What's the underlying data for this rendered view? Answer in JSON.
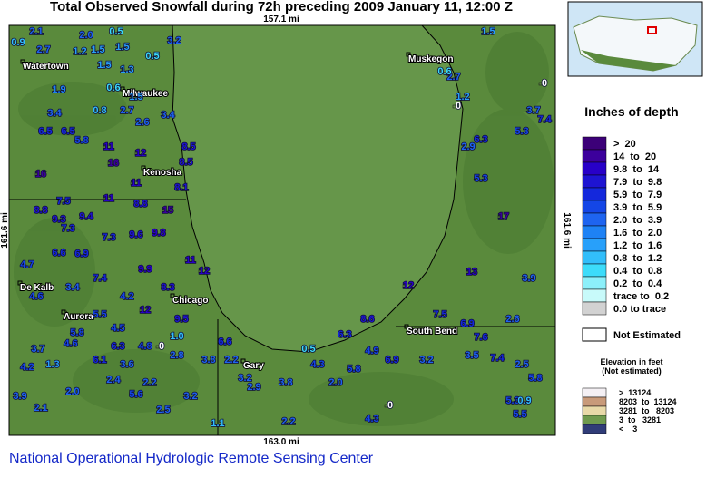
{
  "title": "Total Observed Snowfall during 72h preceding 2009 January 11, 12:00 Z",
  "scale": {
    "top": "157.1 mi",
    "bottom": "163.0 mi",
    "left": "161.6 mi",
    "right": "161.6 mi"
  },
  "cities": [
    "Watertown",
    "Milwaukee",
    "Kenosha",
    "Muskegon",
    "De Kalb",
    "Aurora",
    "Chicago",
    "Gary",
    "South Bend"
  ],
  "stations": [
    {
      "value": "2.1",
      "color": "#1e64f0"
    },
    {
      "value": "2.0",
      "color": "#1e64f0"
    },
    {
      "value": "0.5",
      "color": "#3cdcfa"
    },
    {
      "value": "1.5",
      "color": "#28a0fa"
    },
    {
      "value": "1.2",
      "color": "#28a0fa"
    },
    {
      "value": "1.5",
      "color": "#28a0fa"
    },
    {
      "value": "0.9",
      "color": "#32befa"
    },
    {
      "value": "2.7",
      "color": "#1e64f0"
    },
    {
      "value": "1.5",
      "color": "#28a0fa"
    },
    {
      "value": "1.3",
      "color": "#28a0fa"
    },
    {
      "value": "0.5",
      "color": "#3cdcfa"
    },
    {
      "value": "3.2",
      "color": "#1e64f0"
    },
    {
      "value": "1.9",
      "color": "#1e82f5"
    },
    {
      "value": "0.6",
      "color": "#3cdcfa"
    },
    {
      "value": "1.5",
      "color": "#28a0fa"
    },
    {
      "value": "2.7",
      "color": "#1e64f0"
    },
    {
      "value": "3.4",
      "color": "#1e64f0"
    },
    {
      "value": "0.8",
      "color": "#32befa"
    },
    {
      "value": "2.6",
      "color": "#1e64f0"
    },
    {
      "value": "3.4",
      "color": "#1e64f0"
    },
    {
      "value": "6.5",
      "color": "#1428dc"
    },
    {
      "value": "6.5",
      "color": "#1428dc"
    },
    {
      "value": "5.8",
      "color": "#1446e6"
    },
    {
      "value": "11",
      "color": "#2800c8"
    },
    {
      "value": "12",
      "color": "#2800c8"
    },
    {
      "value": "16",
      "color": "#3c009c"
    },
    {
      "value": "16",
      "color": "#3c009c"
    },
    {
      "value": "8.5",
      "color": "#1e14d2"
    },
    {
      "value": "8.5",
      "color": "#1e14d2"
    },
    {
      "value": "8.1",
      "color": "#1e14d2"
    },
    {
      "value": "11",
      "color": "#2800c8"
    },
    {
      "value": "7.5",
      "color": "#1428dc"
    },
    {
      "value": "11",
      "color": "#2800c8"
    },
    {
      "value": "8.8",
      "color": "#1e14d2"
    },
    {
      "value": "15",
      "color": "#3c009c"
    },
    {
      "value": "8.8",
      "color": "#1e14d2"
    },
    {
      "value": "9.3",
      "color": "#1e14d2"
    },
    {
      "value": "9.4",
      "color": "#1e14d2"
    },
    {
      "value": "7.3",
      "color": "#1428dc"
    },
    {
      "value": "7.3",
      "color": "#1428dc"
    },
    {
      "value": "9.6",
      "color": "#1e14d2"
    },
    {
      "value": "9.8",
      "color": "#2800c8"
    },
    {
      "value": "4.7",
      "color": "#1446e6"
    },
    {
      "value": "6.6",
      "color": "#1428dc"
    },
    {
      "value": "6.9",
      "color": "#1428dc"
    },
    {
      "value": "9.9",
      "color": "#2800c8"
    },
    {
      "value": "11",
      "color": "#2800c8"
    },
    {
      "value": "12",
      "color": "#2800c8"
    },
    {
      "value": "4.6",
      "color": "#1446e6"
    },
    {
      "value": "3.4",
      "color": "#1e64f0"
    },
    {
      "value": "7.4",
      "color": "#1428dc"
    },
    {
      "value": "4.2",
      "color": "#1446e6"
    },
    {
      "value": "8.3",
      "color": "#1e14d2"
    },
    {
      "value": "5.5",
      "color": "#1446e6"
    },
    {
      "value": "12",
      "color": "#2800c8"
    },
    {
      "value": "9.5",
      "color": "#1e14d2"
    },
    {
      "value": "5.8",
      "color": "#1446e6"
    },
    {
      "value": "4.5",
      "color": "#1446e6"
    },
    {
      "value": "3.7",
      "color": "#1e64f0"
    },
    {
      "value": "4.6",
      "color": "#1446e6"
    },
    {
      "value": "6.3",
      "color": "#1428dc"
    },
    {
      "value": "4.8",
      "color": "#1446e6"
    },
    {
      "value": "0",
      "color": "#ffffff"
    },
    {
      "value": "1.0",
      "color": "#32befa"
    },
    {
      "value": "6.1",
      "color": "#1428dc"
    },
    {
      "value": "4.2",
      "color": "#1446e6"
    },
    {
      "value": "1.3",
      "color": "#28a0fa"
    },
    {
      "value": "3.6",
      "color": "#1e64f0"
    },
    {
      "value": "2.8",
      "color": "#1e64f0"
    },
    {
      "value": "6.6",
      "color": "#1428dc"
    },
    {
      "value": "2.2",
      "color": "#1e64f0"
    },
    {
      "value": "3.8",
      "color": "#1e64f0"
    },
    {
      "value": "3.9",
      "color": "#1e64f0"
    },
    {
      "value": "2.0",
      "color": "#1e64f0"
    },
    {
      "value": "2.4",
      "color": "#1e64f0"
    },
    {
      "value": "2.2",
      "color": "#1e64f0"
    },
    {
      "value": "3.2",
      "color": "#1e64f0"
    },
    {
      "value": "2.1",
      "color": "#1e64f0"
    },
    {
      "value": "5.6",
      "color": "#1446e6"
    },
    {
      "value": "2.5",
      "color": "#1e64f0"
    },
    {
      "value": "1.1",
      "color": "#32befa"
    },
    {
      "value": "3.2",
      "color": "#1e64f0"
    },
    {
      "value": "2.9",
      "color": "#1e64f0"
    },
    {
      "value": "2.2",
      "color": "#1e64f0"
    },
    {
      "value": "3.8",
      "color": "#1e64f0"
    },
    {
      "value": "4.3",
      "color": "#1446e6"
    },
    {
      "value": "2.0",
      "color": "#1e64f0"
    },
    {
      "value": "0.5",
      "color": "#3cdcfa"
    },
    {
      "value": "6.3",
      "color": "#1428dc"
    },
    {
      "value": "8.6",
      "color": "#1e14d2"
    },
    {
      "value": "5.8",
      "color": "#1446e6"
    },
    {
      "value": "4.9",
      "color": "#1446e6"
    },
    {
      "value": "6.9",
      "color": "#1428dc"
    },
    {
      "value": "0",
      "color": "#ffffff"
    },
    {
      "value": "4.3",
      "color": "#1446e6"
    },
    {
      "value": "3.2",
      "color": "#1e64f0"
    },
    {
      "value": "3.5",
      "color": "#1e64f0"
    },
    {
      "value": "7.4",
      "color": "#1428dc"
    },
    {
      "value": "2.5",
      "color": "#1e64f0"
    },
    {
      "value": "5.8",
      "color": "#1446e6"
    },
    {
      "value": "5.3",
      "color": "#1446e6"
    },
    {
      "value": "0.9",
      "color": "#32befa"
    },
    {
      "value": "5.5",
      "color": "#1446e6"
    },
    {
      "value": "7.5",
      "color": "#1428dc"
    },
    {
      "value": "6.9",
      "color": "#1428dc"
    },
    {
      "value": "7.6",
      "color": "#1428dc"
    },
    {
      "value": "2.6",
      "color": "#1e64f0"
    },
    {
      "value": "12",
      "color": "#2800c8"
    },
    {
      "value": "13",
      "color": "#2800c8"
    },
    {
      "value": "3.9",
      "color": "#1e64f0"
    },
    {
      "value": "17",
      "color": "#3c009c"
    },
    {
      "value": "5.3",
      "color": "#1446e6"
    },
    {
      "value": "2.9",
      "color": "#1e64f0"
    },
    {
      "value": "6.3",
      "color": "#1428dc"
    },
    {
      "value": "1.2",
      "color": "#28a0fa"
    },
    {
      "value": "0",
      "color": "#ffffff"
    },
    {
      "value": "1.5",
      "color": "#28a0fa"
    },
    {
      "value": "2.7",
      "color": "#1e64f0"
    },
    {
      "value": "0",
      "color": "#ffffff"
    },
    {
      "value": "3.7",
      "color": "#1e64f0"
    },
    {
      "value": "5.3",
      "color": "#1446e6"
    },
    {
      "value": "7.4",
      "color": "#1428dc"
    },
    {
      "value": "0.6",
      "color": "#3cdcfa"
    }
  ],
  "legend": {
    "title": "Inches of depth",
    "items": [
      {
        "label": ">  20",
        "color": "#3c0078"
      },
      {
        "label": "14  to  20",
        "color": "#3c009c"
      },
      {
        "label": "9.8  to  14",
        "color": "#2800c8"
      },
      {
        "label": "7.9  to  9.8",
        "color": "#1e14d2"
      },
      {
        "label": "5.9  to  7.9",
        "color": "#1428dc"
      },
      {
        "label": "3.9  to  5.9",
        "color": "#1446e6"
      },
      {
        "label": "2.0  to  3.9",
        "color": "#1e64f0"
      },
      {
        "label": "1.6  to  2.0",
        "color": "#1e82f5"
      },
      {
        "label": "1.2  to  1.6",
        "color": "#28a0fa"
      },
      {
        "label": "0.8  to  1.2",
        "color": "#32befa"
      },
      {
        "label": "0.4  to  0.8",
        "color": "#3cdcfa"
      },
      {
        "label": "0.2  to  0.4",
        "color": "#8cf0fa"
      },
      {
        "label": "trace to  0.2",
        "color": "#c8fafa"
      },
      {
        "label": "0.0 to trace",
        "color": "#d2d2d2"
      }
    ],
    "not_estimated": "Not Estimated"
  },
  "elevation": {
    "title": "Elevation in feet",
    "subtitle": "(Not estimated)",
    "items": [
      {
        "label": ">  13124",
        "color": "#f4f0f4"
      },
      {
        "label": "8203  to  13124",
        "color": "#c89a7a"
      },
      {
        "label": "3281  to   8203",
        "color": "#e8d9a8"
      },
      {
        "label": "3  to   3281",
        "color": "#6f9a4e"
      },
      {
        "label": "<    3",
        "color": "#303c78"
      }
    ]
  },
  "footer": "National Operational Hydrologic Remote Sensing Center"
}
